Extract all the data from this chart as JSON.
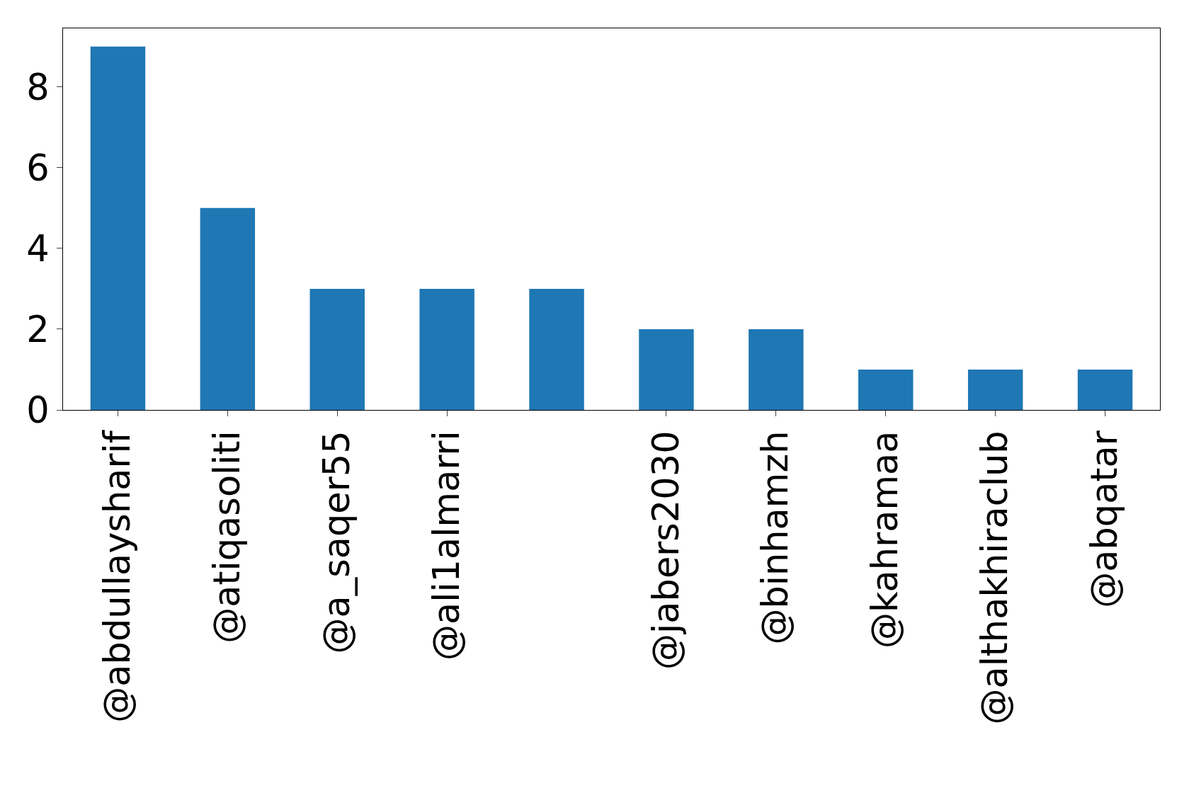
{
  "chart_data": {
    "type": "bar",
    "categories": [
      "@abdullaysharif",
      "@atiqasoliti",
      "@a_saqer55",
      "@ali1almarri",
      null,
      "@jabers2030",
      "@binhamzh",
      "@kahramaa",
      "@althakhiraclub",
      "@abqatar"
    ],
    "values": [
      9,
      5,
      3,
      3,
      3,
      2,
      2,
      1,
      1,
      1
    ],
    "color": "#1f77b4",
    "ylim": [
      0,
      9.45
    ],
    "yticks": [
      0,
      2,
      4,
      6,
      8
    ],
    "grid": false,
    "legend": false
  }
}
